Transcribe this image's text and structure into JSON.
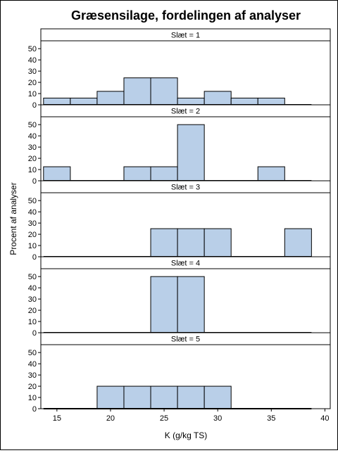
{
  "chart_data": {
    "type": "bar",
    "subtype": "paneled-histogram",
    "title": "Græsensilage, fordelingen af analyser",
    "xlabel": "K (g/kg TS)",
    "ylabel": "Procent af analyser",
    "xlim": [
      13.5,
      40.5
    ],
    "ylim": [
      0,
      57
    ],
    "xticks": [
      15,
      20,
      25,
      30,
      35,
      40
    ],
    "yticks": [
      0,
      10,
      20,
      30,
      40,
      50
    ],
    "bin_edges": [
      13.75,
      16.25,
      18.75,
      21.25,
      23.75,
      26.25,
      28.75,
      31.25,
      33.75,
      36.25,
      38.75
    ],
    "bar_color": "#b9cfe8",
    "grid": false,
    "panels": [
      {
        "label": "Slæt = 1",
        "values": [
          6,
          6,
          12,
          24,
          24,
          6,
          12,
          6,
          6,
          0
        ]
      },
      {
        "label": "Slæt = 2",
        "values": [
          12.5,
          0,
          0,
          12.5,
          12.5,
          50,
          0,
          0,
          12.5,
          0
        ]
      },
      {
        "label": "Slæt = 3",
        "values": [
          0,
          0,
          0,
          0,
          25,
          25,
          25,
          0,
          0,
          25
        ]
      },
      {
        "label": "Slæt = 4",
        "values": [
          0,
          0,
          0,
          0,
          50,
          50,
          0,
          0,
          0,
          0
        ]
      },
      {
        "label": "Slæt = 5",
        "values": [
          0,
          0,
          20,
          20,
          20,
          20,
          20,
          0,
          0,
          0
        ]
      }
    ]
  }
}
